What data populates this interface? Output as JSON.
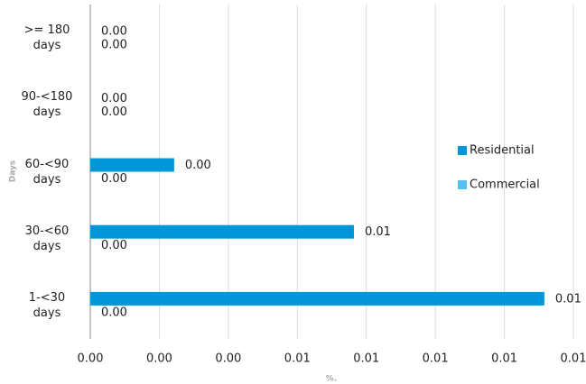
{
  "chart_data": {
    "type": "hbar",
    "x_label": "%.",
    "y_label": "Days",
    "categories": [
      ">= 180 days",
      "90-<180 days",
      "60-<90 days",
      "30-<60 days",
      "1-<30 days"
    ],
    "series": [
      {
        "name": "Residential",
        "color": "#0096d9",
        "values": [
          0,
          0,
          0.00243,
          0.00764,
          0.01316
        ],
        "value_labels": [
          "0.00",
          "0.00",
          "0.00",
          "0.01",
          "0.01"
        ]
      },
      {
        "name": "Commercial",
        "color": "#55c3ee",
        "values": [
          0,
          0,
          0,
          0,
          0
        ],
        "value_labels": [
          "0.00",
          "0.00",
          "0.00",
          "0.00",
          "0.00"
        ]
      }
    ],
    "xlim": [
      0,
      0.014
    ],
    "xticks": [
      {
        "value": 0,
        "label": "0.00"
      },
      {
        "value": 0.002,
        "label": "0.00"
      },
      {
        "value": 0.004,
        "label": "0.00"
      },
      {
        "value": 0.006,
        "label": "0.01"
      },
      {
        "value": 0.008,
        "label": "0.01"
      },
      {
        "value": 0.01,
        "label": "0.01"
      },
      {
        "value": 0.012,
        "label": "0.01"
      },
      {
        "value": 0.014,
        "label": "0.01"
      }
    ],
    "grid": true,
    "legend": "right"
  }
}
